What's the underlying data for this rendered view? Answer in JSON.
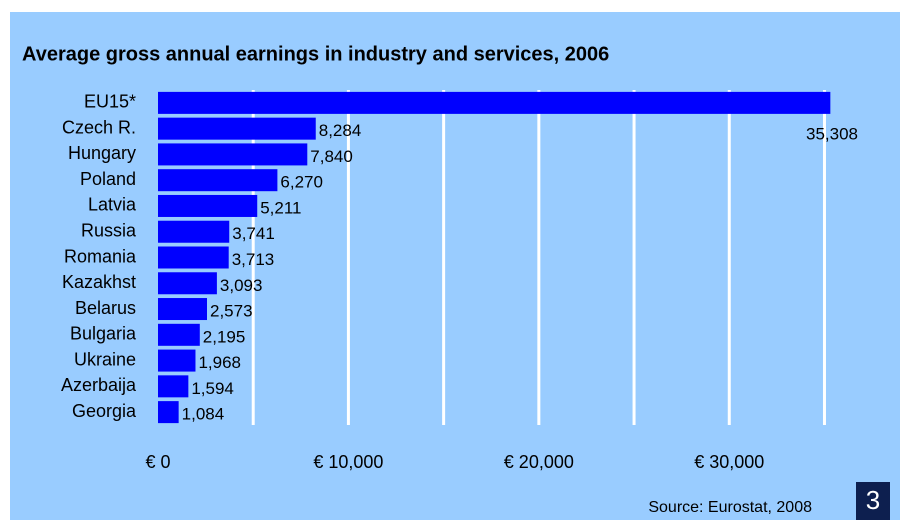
{
  "chart_data": {
    "type": "bar",
    "orientation": "horizontal",
    "title": "Average gross annual earnings in industry and services, 2006",
    "categories": [
      "EU15*",
      "Czech R.",
      "Hungary",
      "Poland",
      "Latvia",
      "Russia",
      "Romania",
      "Kazakhst",
      "Belarus",
      "Bulgaria",
      "Ukraine",
      "Azerbaija",
      "Georgia"
    ],
    "values": [
      35308,
      8284,
      7840,
      6270,
      5211,
      3741,
      3713,
      3093,
      2573,
      2195,
      1968,
      1594,
      1084
    ],
    "value_labels": [
      "35,308",
      "8,284",
      "7,840",
      "6,270",
      "5,211",
      "3,741",
      "3,713",
      "3,093",
      "2,573",
      "2,195",
      "1,968",
      "1,594",
      "1,084"
    ],
    "color": "#0000ff",
    "xlim": [
      0,
      35500
    ],
    "xticks": [
      {
        "value": 0,
        "label": "€ 0"
      },
      {
        "value": 10000,
        "label": "€ 10,000"
      },
      {
        "value": 20000,
        "label": "€ 20,000"
      },
      {
        "value": 30000,
        "label": "€ 30,000"
      }
    ],
    "minor_xticks": [
      5000,
      15000,
      25000,
      35000
    ],
    "grid": true,
    "source": "Source: Eurostat, 2008",
    "page_number": "3"
  }
}
